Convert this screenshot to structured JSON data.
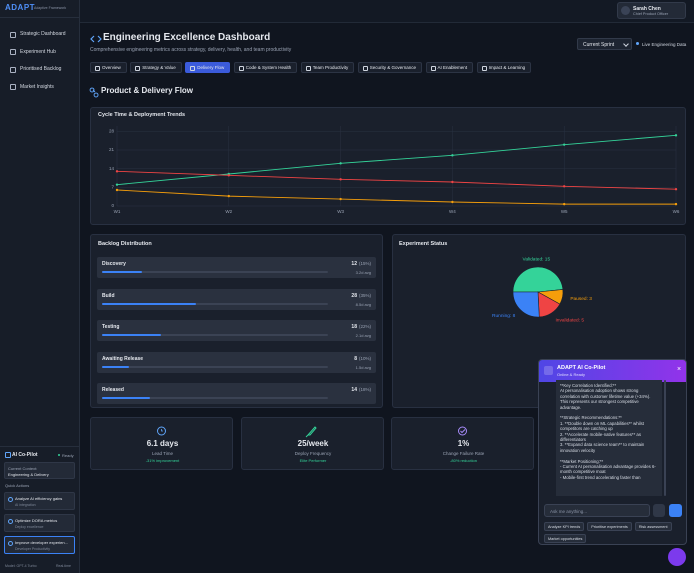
{
  "sidebar": {
    "logo": "ADAPT",
    "tagline": "Adaptive Framework",
    "nav": [
      "Strategic Dashboard",
      "Experiment Hub",
      "Prioritised Backlog",
      "Market Insights"
    ],
    "copilot": {
      "title": "AI Co-Pilot",
      "status": "Ready",
      "context_label": "Current Context:",
      "context_value": "Engineering & Delivery",
      "quick_actions_label": "Quick Actions",
      "actions": [
        {
          "title": "Analyze AI efficiency gains",
          "sub": "AI integration"
        },
        {
          "title": "Optimize DORA metrics",
          "sub": "Deploy excellence"
        },
        {
          "title": "Improve developer experien...",
          "sub": "Developer Productivity"
        }
      ],
      "model": "Model: GPT-4 Turbo",
      "mode": "Real-time"
    }
  },
  "header": {
    "user_name": "Sarah Chen",
    "user_role": "Chief Product Officer",
    "title": "Engineering Excellence Dashboard",
    "subtitle": "Comprehensive engineering metrics across strategy, delivery, health, and team productivity",
    "period": "Current Sprint",
    "live": "Live Engineering Data"
  },
  "tabs": [
    {
      "label": "Overview"
    },
    {
      "label": "Strategy & Value"
    },
    {
      "label": "Delivery Flow",
      "active": true
    },
    {
      "label": "Code & System Health"
    },
    {
      "label": "Team Productivity"
    },
    {
      "label": "Security & Governance"
    },
    {
      "label": "AI Enablement"
    },
    {
      "label": "Impact & Learning"
    }
  ],
  "section_title": "Product & Delivery Flow",
  "chart_data": [
    {
      "type": "line",
      "title": "Cycle Time & Deployment Trends",
      "categories": [
        "W1",
        "W2",
        "W3",
        "W4",
        "W5",
        "W6"
      ],
      "series": [
        {
          "color": "#34d399",
          "values": [
            8,
            12,
            16,
            19,
            23,
            26.5
          ]
        },
        {
          "color": "#ef4444",
          "values": [
            13,
            11.5,
            10,
            9,
            7.4,
            6.3
          ]
        },
        {
          "color": "#f59e0b",
          "values": [
            6,
            3.7,
            2.6,
            1.5,
            0.7,
            0.7
          ]
        }
      ],
      "ylim": [
        0,
        30
      ],
      "yticks": [
        0,
        7,
        14,
        21,
        28
      ],
      "grid": true
    },
    {
      "type": "pie",
      "title": "Experiment Status",
      "categories": [
        "Validated",
        "Paused",
        "Invalidated",
        "Running"
      ],
      "values": [
        15,
        3,
        5,
        8
      ],
      "value_labels": [
        "Validated: 15",
        "Paused: 3",
        "Invalidated: 5",
        "Running: 8"
      ],
      "colors": [
        "#34d399",
        "#f59e0b",
        "#ef4444",
        "#3b82f6"
      ]
    }
  ],
  "backlog": {
    "title": "Backlog Distribution",
    "rows": [
      {
        "name": "Discovery",
        "count": 12,
        "percent": 15,
        "percent_label": "(15%)",
        "avg": "3.2d avg"
      },
      {
        "name": "Build",
        "count": 28,
        "percent": 35,
        "percent_label": "(35%)",
        "avg": "8.5d avg"
      },
      {
        "name": "Testing",
        "count": 18,
        "percent": 22,
        "percent_label": "(22%)",
        "avg": "2.1d avg"
      },
      {
        "name": "Awaiting Release",
        "count": 8,
        "percent": 10,
        "percent_label": "(10%)",
        "avg": "1.5d avg"
      },
      {
        "name": "Released",
        "count": 14,
        "percent": 18,
        "percent_label": "(18%)"
      }
    ]
  },
  "kpis": [
    {
      "value": "6.1 days",
      "label": "Lead Time",
      "note": "-31% improvement"
    },
    {
      "value": "25/week",
      "label": "Deploy Frequency",
      "note": "Elite Performer"
    },
    {
      "value": "1%",
      "label": "Change Failure Rate",
      "note": "-80% reduction"
    }
  ],
  "chat": {
    "title": "ADAPT AI Co-Pilot",
    "status": "Online & Ready",
    "sections": [
      {
        "heading": "**Key Correlation Identified:**",
        "lines": [
          "AI personalisation adoption shows strong correlation with customer lifetime value (+34%). This represents our strongest competitive advantage."
        ]
      },
      {
        "heading": "**Strategic Recommendations:**",
        "lines": [
          "1. **Double down on ML capabilities** whilst competitors are catching up",
          "2. **Accelerate mobile-native features** as differentiators",
          "3. **Expand data science team** to maintain innovation velocity"
        ]
      },
      {
        "heading": "**Market Positioning:**",
        "lines": [
          "- Current AI personalisation advantage provides 6-month competitive moat",
          "- Mobile-first trend accelerating faster than"
        ]
      }
    ],
    "placeholder": "Ask me anything...",
    "chips": [
      "Analyze KPI trends",
      "Prioritise experiments",
      "Risk assessment",
      "Market opportunities"
    ]
  }
}
